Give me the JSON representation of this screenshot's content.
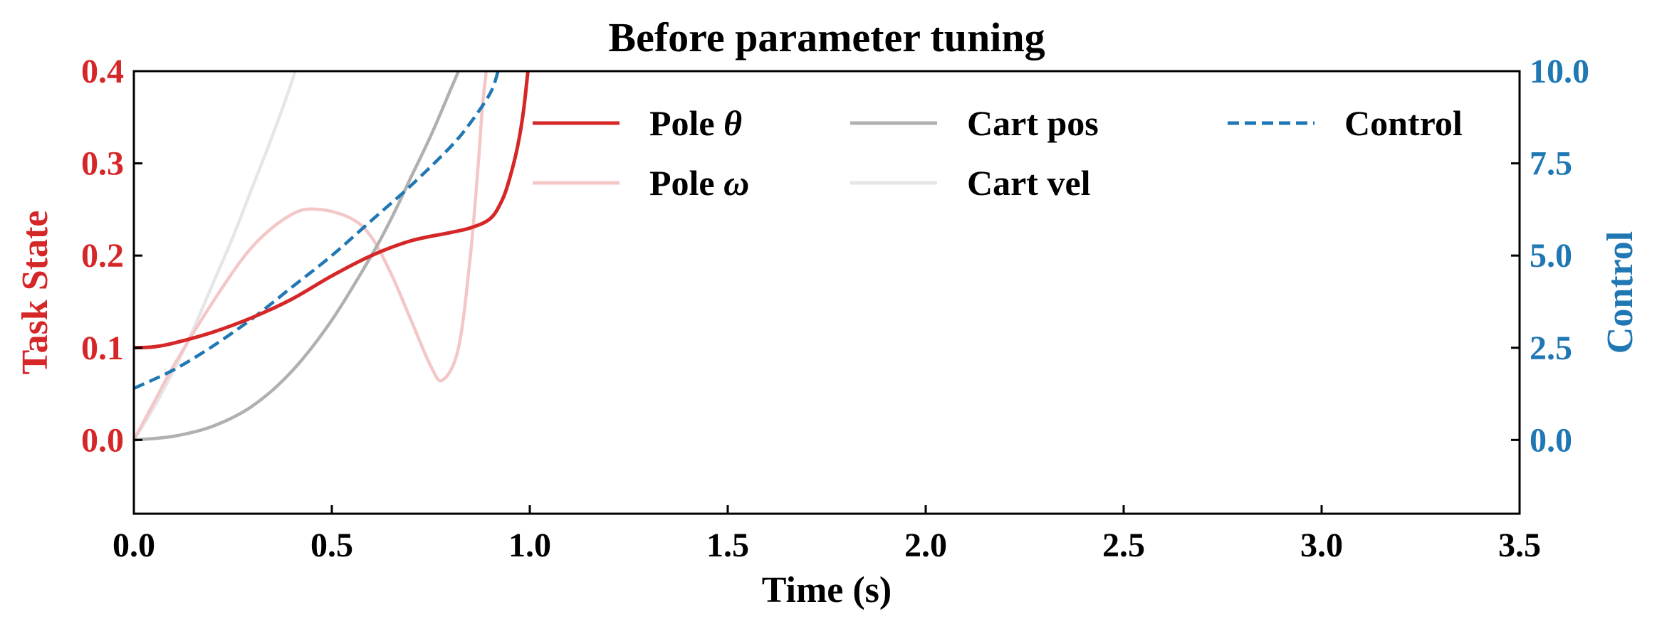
{
  "colors": {
    "left_axis": "#d62728",
    "right_axis": "#1f77b4",
    "pole_theta": "#d62728",
    "pole_omega": "#f4c7c7",
    "cart_pos": "#b0b0b0",
    "cart_vel": "#e6e6e6",
    "control": "#1f77b4"
  },
  "chart_data": {
    "type": "line",
    "title": "Before parameter tuning",
    "xlabel": "Time (s)",
    "ylabel_left": "Task State",
    "ylabel_right": "Control",
    "xlim": [
      0.0,
      3.5
    ],
    "ylim_left": [
      -0.08,
      0.4
    ],
    "ylim_right": [
      -2.0,
      10.0
    ],
    "xticks": [
      "0.0",
      "0.5",
      "1.0",
      "1.5",
      "2.0",
      "2.5",
      "3.0",
      "3.5"
    ],
    "yticks_left": [
      "0.0",
      "0.1",
      "0.2",
      "0.3",
      "0.4"
    ],
    "yticks_right": [
      "0.0",
      "2.5",
      "5.0",
      "7.5",
      "10.0"
    ],
    "legend": {
      "placement": "top-right",
      "entries": [
        {
          "label": "Pole ",
          "symbol": "θ",
          "series": "pole_theta"
        },
        {
          "label": "Pole ",
          "symbol": "ω",
          "series": "pole_omega"
        },
        {
          "label": "Cart pos",
          "symbol": "",
          "series": "cart_pos"
        },
        {
          "label": "Cart vel",
          "symbol": "",
          "series": "cart_vel"
        },
        {
          "label": "Control",
          "symbol": "",
          "series": "control"
        }
      ]
    },
    "series": [
      {
        "key": "pole_theta",
        "name": "Pole θ",
        "axis": "left",
        "style": "solid",
        "x": [
          0,
          0.05,
          0.1,
          0.2,
          0.3,
          0.4,
          0.5,
          0.6,
          0.7,
          0.8,
          0.85,
          0.9,
          0.93,
          0.95,
          0.97,
          0.985,
          1.0
        ],
        "y": [
          0.1,
          0.101,
          0.105,
          0.117,
          0.133,
          0.153,
          0.178,
          0.2,
          0.216,
          0.225,
          0.23,
          0.24,
          0.26,
          0.285,
          0.32,
          0.36,
          0.42
        ]
      },
      {
        "key": "pole_omega",
        "name": "Pole ω",
        "axis": "left",
        "style": "solid",
        "x": [
          0,
          0.05,
          0.1,
          0.2,
          0.3,
          0.4,
          0.47,
          0.55,
          0.6,
          0.65,
          0.7,
          0.75,
          0.78,
          0.82,
          0.85,
          0.87,
          0.88,
          0.89,
          0.9
        ],
        "y": [
          0.0,
          0.04,
          0.08,
          0.15,
          0.21,
          0.245,
          0.25,
          0.24,
          0.22,
          0.18,
          0.13,
          0.08,
          0.065,
          0.1,
          0.2,
          0.3,
          0.36,
          0.4,
          0.44
        ]
      },
      {
        "key": "cart_pos",
        "name": "Cart pos",
        "axis": "left",
        "style": "solid",
        "x": [
          0,
          0.1,
          0.2,
          0.3,
          0.4,
          0.5,
          0.6,
          0.65,
          0.7,
          0.75,
          0.8,
          0.83
        ],
        "y": [
          0.0,
          0.004,
          0.015,
          0.037,
          0.075,
          0.13,
          0.2,
          0.24,
          0.285,
          0.33,
          0.38,
          0.41
        ]
      },
      {
        "key": "cart_vel",
        "name": "Cart vel",
        "axis": "left",
        "style": "solid",
        "x": [
          0,
          0.05,
          0.1,
          0.15,
          0.2,
          0.25,
          0.3,
          0.35,
          0.4,
          0.42
        ],
        "y": [
          0.0,
          0.035,
          0.075,
          0.12,
          0.17,
          0.22,
          0.275,
          0.33,
          0.39,
          0.42
        ]
      },
      {
        "key": "control",
        "name": "Control",
        "axis": "right",
        "style": "dashed",
        "x": [
          0,
          0.1,
          0.2,
          0.3,
          0.4,
          0.5,
          0.6,
          0.7,
          0.8,
          0.85,
          0.9,
          0.92
        ],
        "y": [
          1.4,
          1.9,
          2.55,
          3.3,
          4.15,
          5.0,
          5.95,
          6.9,
          7.95,
          8.6,
          9.4,
          10.0
        ]
      }
    ]
  }
}
